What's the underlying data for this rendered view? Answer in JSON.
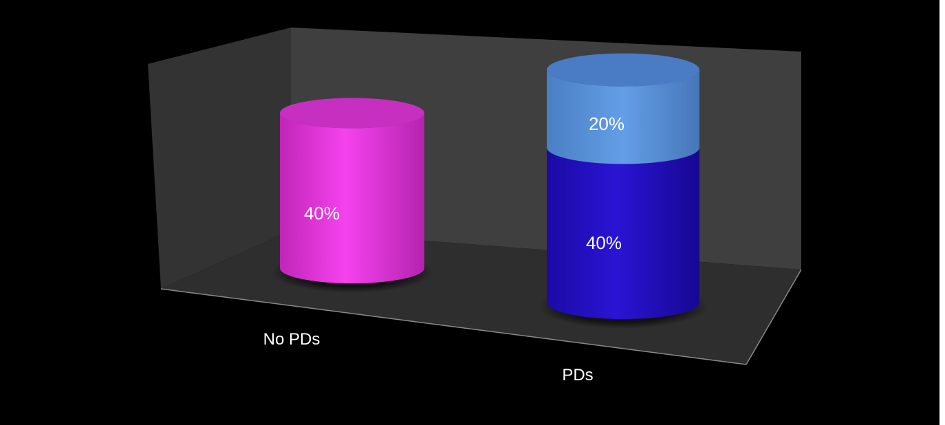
{
  "chart_data": {
    "type": "bar",
    "style": "3d-stacked-cylinder",
    "categories": [
      "No PDs",
      "PDs"
    ],
    "series": [
      {
        "values": [
          40,
          40
        ],
        "colors": [
          "#ee33e6",
          "#2410c6"
        ]
      },
      {
        "values": [
          0,
          20
        ],
        "colors": [
          "#ee33e6",
          "#5b96dc"
        ]
      }
    ],
    "data_labels": [
      {
        "category": "No PDs",
        "text": "40%"
      },
      {
        "category": "PDs",
        "text": "40%"
      },
      {
        "category": "PDs",
        "text": "20%"
      }
    ],
    "title": "",
    "xlabel": "",
    "ylabel": "",
    "ylim": [
      0,
      60
    ],
    "grid": false,
    "legend": "none",
    "background": "#000000",
    "wall_color": "#3c3c3c",
    "floor_color": "#2f2f2f"
  }
}
